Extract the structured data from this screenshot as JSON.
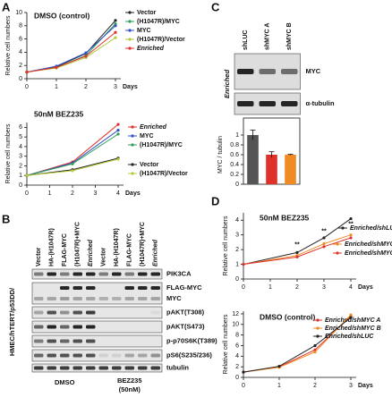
{
  "panel_labels": [
    "A",
    "B",
    "C",
    "D"
  ],
  "blot_b": {
    "side_label": "HMEC/hTERT/p53DD/",
    "lanes": [
      "Vector",
      "HA-(H1047R)",
      "FLAG-MYC",
      "(H1047R)+MYC",
      "Enriched",
      "Vector",
      "HA-(H1047R)",
      "FLAG-MYC",
      "(H1047R)+MYC",
      "Enriched"
    ],
    "rows": [
      "PIK3CA",
      "FLAG-MYC",
      "MYC",
      "pAKT(T308)",
      "pAKT(S473)",
      "p-p70S6K(T389)",
      "pS6(S235/236)",
      "tubulin"
    ],
    "conditions": [
      "DMSO",
      "BEZ235",
      "(50nM)"
    ]
  },
  "blot_c": {
    "side_label": "Enriched",
    "rows": [
      "MYC",
      "α-tubulin"
    ]
  },
  "chart_data": [
    {
      "type": "line",
      "title": "DMSO (control)",
      "x_label": "Days",
      "y_label": "Relative cell numbers",
      "x": [
        0,
        1,
        2,
        3
      ],
      "xlim": [
        0,
        3
      ],
      "xticks": [
        0,
        1,
        2,
        3
      ],
      "ylim": [
        0,
        10
      ],
      "yticks": [
        0,
        2,
        4,
        6,
        8,
        10
      ],
      "series": [
        {
          "name": "Vector",
          "color": "#222222",
          "values": [
            1,
            1.8,
            3.8,
            8.8
          ]
        },
        {
          "name": "(H1047R)/MYC",
          "color": "#2ca05a",
          "values": [
            1,
            1.7,
            3.5,
            8.3
          ]
        },
        {
          "name": "MYC",
          "color": "#3050c8",
          "values": [
            1,
            1.9,
            3.9,
            8.0
          ]
        },
        {
          "name": "(H1047R)/Vector",
          "color": "#b5c93a",
          "values": [
            1,
            1.6,
            3.2,
            6.2
          ]
        },
        {
          "name": "Enriched",
          "color": "#e0302a",
          "italic": true,
          "values": [
            1,
            1.7,
            3.4,
            7.0
          ]
        }
      ]
    },
    {
      "type": "line",
      "title": "50nM BEZ235",
      "x_label": "Days",
      "y_label": "Relative cell numbers",
      "x": [
        0,
        2,
        4
      ],
      "xlim": [
        0,
        4
      ],
      "xticks": [
        0,
        1,
        2,
        3,
        4
      ],
      "ylim": [
        0,
        6.5
      ],
      "yticks": [
        0,
        1,
        2,
        3,
        4,
        5,
        6
      ],
      "series": [
        {
          "name": "Enriched",
          "color": "#e0302a",
          "italic": true,
          "values": [
            1,
            2.4,
            6.3
          ]
        },
        {
          "name": "MYC",
          "color": "#3050c8",
          "values": [
            1,
            2.3,
            5.7
          ]
        },
        {
          "name": "(H1047R)/MYC",
          "color": "#2ca05a",
          "values": [
            1,
            2.2,
            5.3
          ]
        },
        {
          "name": "Vector",
          "color": "#222222",
          "values": [
            1,
            1.6,
            2.8
          ]
        },
        {
          "name": "(H1047R)/Vector",
          "color": "#b5c93a",
          "values": [
            1,
            1.5,
            2.7
          ]
        }
      ]
    },
    {
      "type": "bar",
      "y_label": "MYC / tubulin",
      "categories": [
        "shLUC",
        "shMYC A",
        "shMYC B"
      ],
      "values": [
        1.0,
        0.6,
        0.6
      ],
      "errors": [
        0.1,
        0.06,
        0.01
      ],
      "colors": [
        "#555555",
        "#e0302a",
        "#f08a24"
      ],
      "ylim": [
        0,
        1.2
      ],
      "yticks": [
        0,
        0.2,
        0.4,
        0.6,
        0.8,
        1
      ]
    },
    {
      "type": "line",
      "title": "50nM BEZ235",
      "x_label": "Days",
      "y_label": "Relative cell numbers",
      "x": [
        0,
        2,
        3,
        4
      ],
      "xlim": [
        0,
        4
      ],
      "xticks": [
        0,
        1,
        2,
        3,
        4
      ],
      "ylim": [
        0,
        4.5
      ],
      "yticks": [
        0,
        1,
        2,
        3,
        4
      ],
      "series": [
        {
          "name": "Enriched/shLUC",
          "color": "#222222",
          "italic": true,
          "values": [
            1,
            1.8,
            2.8,
            4.1
          ]
        },
        {
          "name": "Enriched/shMYC B",
          "color": "#f08a24",
          "italic": true,
          "values": [
            1,
            1.6,
            2.4,
            3.0
          ]
        },
        {
          "name": "Enriched/shMYC A",
          "color": "#e0302a",
          "italic": true,
          "values": [
            1,
            1.5,
            2.2,
            2.8
          ]
        }
      ],
      "annotations": [
        {
          "text": "**",
          "x": 2,
          "y": 2.1
        },
        {
          "text": "**",
          "x": 3,
          "y": 3.0
        },
        {
          "text": "**",
          "x": 4,
          "y": 3.5
        }
      ]
    },
    {
      "type": "line",
      "title": "DMSO (control)",
      "x_label": "Days",
      "y_label": "Relative cell numbers",
      "x": [
        0,
        1,
        2,
        3
      ],
      "xlim": [
        0,
        3
      ],
      "xticks": [
        0,
        1,
        2,
        3
      ],
      "ylim": [
        0,
        12.5
      ],
      "yticks": [
        0,
        2,
        4,
        6,
        8,
        10,
        12
      ],
      "series": [
        {
          "name": "Enriched/shMYC A",
          "color": "#e0302a",
          "italic": true,
          "values": [
            1,
            2.0,
            5.2,
            11.6
          ]
        },
        {
          "name": "Enriched/shMYC B",
          "color": "#f08a24",
          "italic": true,
          "values": [
            1,
            1.9,
            4.8,
            11.8
          ]
        },
        {
          "name": "Enriched/shLUC",
          "color": "#222222",
          "italic": true,
          "values": [
            1,
            2.1,
            6.0,
            11.3
          ]
        }
      ]
    }
  ]
}
